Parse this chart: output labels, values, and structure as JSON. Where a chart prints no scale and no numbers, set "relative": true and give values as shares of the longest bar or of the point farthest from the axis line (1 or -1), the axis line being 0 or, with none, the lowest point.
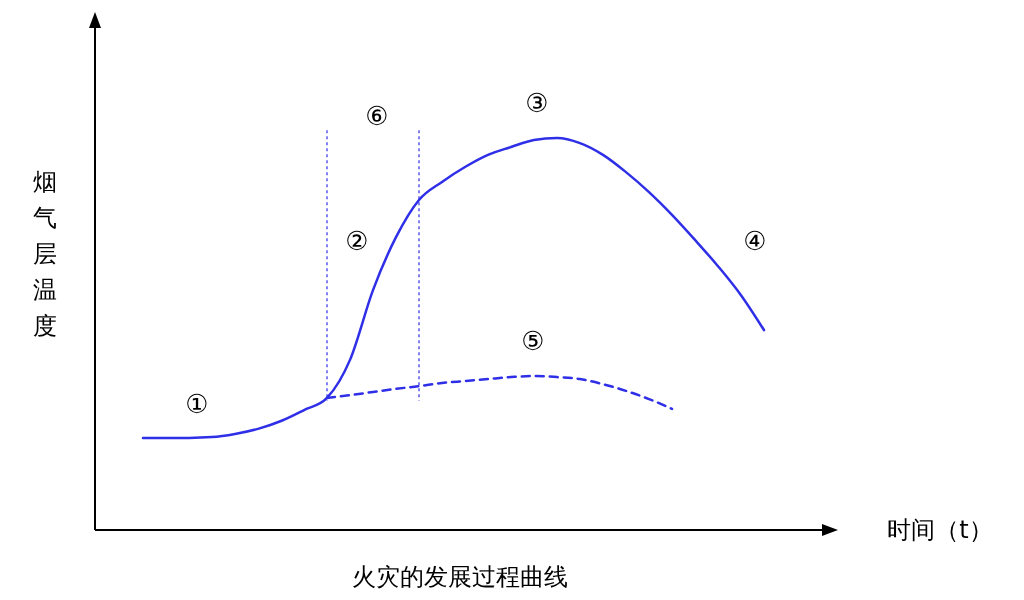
{
  "chart_data": {
    "type": "line",
    "relative": true,
    "title": "火灾的发展过程曲线",
    "xlabel": "时间（t）",
    "ylabel": "烟气层温度",
    "categories": [
      null,
      null,
      null,
      null,
      null,
      null,
      null,
      null,
      null,
      null,
      null,
      null,
      null,
      null,
      null,
      null,
      null,
      null,
      null,
      null,
      null,
      null,
      null,
      null,
      null,
      null,
      null,
      null
    ],
    "series": [
      {
        "color": "#2f2fe8",
        "line_style": "solid",
        "values": [
          0.235,
          0.235,
          0.235,
          0.237,
          0.245,
          0.258,
          0.278,
          0.306,
          0.337,
          0.434,
          0.612,
          0.747,
          0.842,
          0.888,
          0.926,
          0.957,
          0.977,
          0.995,
          1.0,
          0.987,
          0.957,
          0.913,
          0.862,
          0.804,
          0.74,
          0.673,
          0.599,
          0.51
        ]
      },
      {
        "color": "#2f2fe8",
        "line_style": "dashed",
        "values": [
          null,
          null,
          null,
          null,
          null,
          null,
          null,
          null,
          0.337,
          0.344,
          0.352,
          0.36,
          0.367,
          0.375,
          0.38,
          0.385,
          0.39,
          0.393,
          0.39,
          0.385,
          0.372,
          0.355,
          0.334,
          0.309,
          null,
          null,
          null,
          null
        ]
      }
    ],
    "marker": "none",
    "grid": false,
    "annotations": [
      "①",
      "②",
      "③",
      "④",
      "⑤",
      "⑥"
    ]
  }
}
